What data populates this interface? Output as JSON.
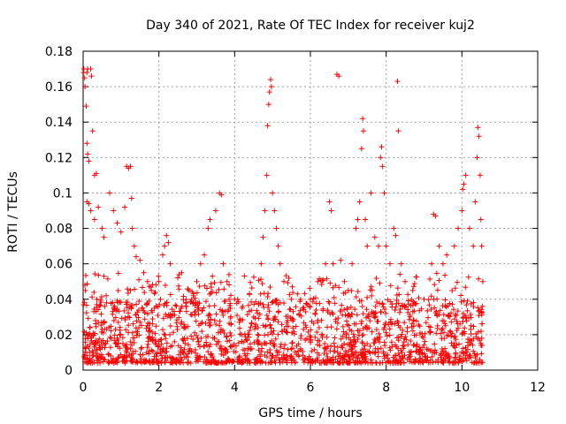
{
  "chart_data": {
    "type": "scatter",
    "title": "Day 340 of 2021, Rate Of TEC Index for receiver kuj2",
    "xlabel": "GPS time / hours",
    "ylabel": "ROTI / TECUs",
    "xlim": [
      0,
      12
    ],
    "ylim": [
      0,
      0.18
    ],
    "x_ticks": [
      0,
      2,
      4,
      6,
      8,
      10,
      12
    ],
    "x_tick_labels": [
      "0",
      "2",
      "4",
      "6",
      "8",
      "10",
      "12"
    ],
    "y_ticks": [
      0,
      0.02,
      0.04,
      0.06,
      0.08,
      0.1,
      0.12,
      0.14,
      0.16,
      0.18
    ],
    "y_tick_labels": [
      "0",
      "0.02",
      "0.04",
      "0.06",
      "0.08",
      "0.1",
      "0.12",
      "0.14",
      "0.16",
      "0.18"
    ],
    "grid": true,
    "marker": "plus",
    "marker_color": "#ff0000",
    "data_x_range": [
      0,
      10.55
    ],
    "background_band_description": "dense cloud mostly between 0.005 and 0.04",
    "series": [
      {
        "name": "ROTI",
        "points": [
          [
            0.01,
            0.168
          ],
          [
            0.02,
            0.17
          ],
          [
            0.04,
            0.165
          ],
          [
            0.05,
            0.16
          ],
          [
            0.08,
            0.149
          ],
          [
            0.1,
            0.168
          ],
          [
            0.12,
            0.17
          ],
          [
            0.2,
            0.17
          ],
          [
            0.22,
            0.166
          ],
          [
            0.1,
            0.128
          ],
          [
            0.12,
            0.122
          ],
          [
            0.15,
            0.118
          ],
          [
            0.25,
            0.135
          ],
          [
            0.3,
            0.11
          ],
          [
            0.35,
            0.111
          ],
          [
            0.1,
            0.095
          ],
          [
            0.15,
            0.094
          ],
          [
            0.2,
            0.09
          ],
          [
            0.3,
            0.085
          ],
          [
            0.4,
            0.092
          ],
          [
            0.5,
            0.08
          ],
          [
            0.55,
            0.075
          ],
          [
            0.7,
            0.1
          ],
          [
            0.8,
            0.09
          ],
          [
            0.9,
            0.083
          ],
          [
            1.0,
            0.078
          ],
          [
            1.1,
            0.092
          ],
          [
            1.15,
            0.115
          ],
          [
            1.2,
            0.114
          ],
          [
            1.25,
            0.115
          ],
          [
            1.28,
            0.097
          ],
          [
            1.3,
            0.08
          ],
          [
            1.35,
            0.07
          ],
          [
            1.4,
            0.064
          ],
          [
            1.5,
            0.062
          ],
          [
            1.6,
            0.055
          ],
          [
            1.7,
            0.05
          ],
          [
            1.8,
            0.045
          ],
          [
            2.0,
            0.05
          ],
          [
            2.1,
            0.065
          ],
          [
            2.15,
            0.07
          ],
          [
            2.2,
            0.076
          ],
          [
            2.25,
            0.072
          ],
          [
            2.3,
            0.06
          ],
          [
            2.6,
            0.055
          ],
          [
            2.8,
            0.045
          ],
          [
            3.0,
            0.05
          ],
          [
            3.1,
            0.06
          ],
          [
            3.2,
            0.065
          ],
          [
            3.3,
            0.08
          ],
          [
            3.35,
            0.085
          ],
          [
            3.5,
            0.09
          ],
          [
            3.6,
            0.1
          ],
          [
            3.65,
            0.099
          ],
          [
            3.7,
            0.06
          ],
          [
            3.8,
            0.05
          ],
          [
            4.0,
            0.04
          ],
          [
            4.2,
            0.035
          ],
          [
            4.5,
            0.03
          ],
          [
            4.7,
            0.06
          ],
          [
            4.75,
            0.075
          ],
          [
            4.8,
            0.09
          ],
          [
            4.85,
            0.11
          ],
          [
            4.87,
            0.138
          ],
          [
            4.9,
            0.15
          ],
          [
            4.92,
            0.157
          ],
          [
            4.95,
            0.164
          ],
          [
            4.97,
            0.16
          ],
          [
            5.0,
            0.1
          ],
          [
            5.05,
            0.09
          ],
          [
            5.1,
            0.08
          ],
          [
            5.15,
            0.07
          ],
          [
            5.2,
            0.06
          ],
          [
            5.3,
            0.05
          ],
          [
            5.5,
            0.04
          ],
          [
            5.8,
            0.035
          ],
          [
            6.0,
            0.04
          ],
          [
            6.2,
            0.05
          ],
          [
            6.4,
            0.06
          ],
          [
            6.5,
            0.095
          ],
          [
            6.55,
            0.09
          ],
          [
            6.6,
            0.06
          ],
          [
            6.7,
            0.167
          ],
          [
            6.75,
            0.166
          ],
          [
            6.8,
            0.062
          ],
          [
            6.9,
            0.05
          ],
          [
            7.0,
            0.045
          ],
          [
            7.1,
            0.06
          ],
          [
            7.2,
            0.08
          ],
          [
            7.25,
            0.085
          ],
          [
            7.3,
            0.095
          ],
          [
            7.35,
            0.125
          ],
          [
            7.38,
            0.142
          ],
          [
            7.4,
            0.135
          ],
          [
            7.45,
            0.085
          ],
          [
            7.5,
            0.07
          ],
          [
            7.6,
            0.1
          ],
          [
            7.7,
            0.075
          ],
          [
            7.8,
            0.07
          ],
          [
            7.85,
            0.12
          ],
          [
            7.88,
            0.126
          ],
          [
            7.9,
            0.115
          ],
          [
            7.95,
            0.1
          ],
          [
            8.0,
            0.07
          ],
          [
            8.1,
            0.06
          ],
          [
            8.2,
            0.08
          ],
          [
            8.25,
            0.076
          ],
          [
            8.3,
            0.163
          ],
          [
            8.32,
            0.135
          ],
          [
            8.4,
            0.06
          ],
          [
            8.5,
            0.05
          ],
          [
            8.7,
            0.045
          ],
          [
            9.0,
            0.04
          ],
          [
            9.2,
            0.06
          ],
          [
            9.25,
            0.088
          ],
          [
            9.3,
            0.087
          ],
          [
            9.4,
            0.07
          ],
          [
            9.5,
            0.06
          ],
          [
            9.6,
            0.065
          ],
          [
            9.8,
            0.07
          ],
          [
            9.9,
            0.08
          ],
          [
            10.0,
            0.09
          ],
          [
            10.02,
            0.102
          ],
          [
            10.05,
            0.105
          ],
          [
            10.1,
            0.11
          ],
          [
            10.2,
            0.08
          ],
          [
            10.3,
            0.07
          ],
          [
            10.35,
            0.095
          ],
          [
            10.4,
            0.12
          ],
          [
            10.42,
            0.137
          ],
          [
            10.45,
            0.132
          ],
          [
            10.48,
            0.11
          ],
          [
            10.5,
            0.085
          ],
          [
            10.52,
            0.07
          ],
          [
            10.55,
            0.05
          ]
        ]
      }
    ]
  }
}
